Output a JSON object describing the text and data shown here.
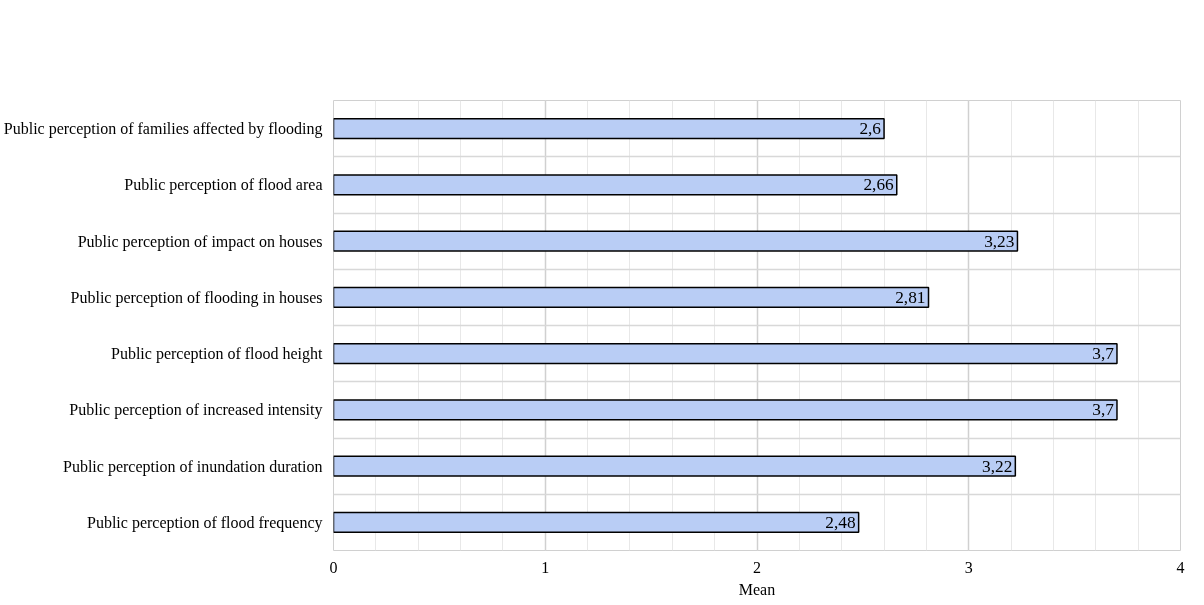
{
  "chart_data": {
    "type": "bar",
    "orientation": "horizontal",
    "xlabel": "Mean",
    "categories": [
      "Public perception of families affected by flooding",
      "Public perception of flood area",
      "Public perception of impact on houses",
      "Public perception of flooding in houses",
      "Public perception of flood height",
      "Public perception of increased intensity",
      "Public perception of inundation duration",
      "Public perception of flood frequency"
    ],
    "values": [
      2.6,
      2.66,
      3.23,
      2.81,
      3.7,
      3.7,
      3.22,
      2.48
    ],
    "value_labels": [
      "2,6",
      "2,66",
      "3,23",
      "2,81",
      "3,7",
      "3,7",
      "3,22",
      "2,48"
    ],
    "color": "#b9cdf5",
    "xlim": [
      0,
      4
    ],
    "xticks": [
      0,
      1,
      2,
      3,
      4
    ],
    "grid": true
  }
}
